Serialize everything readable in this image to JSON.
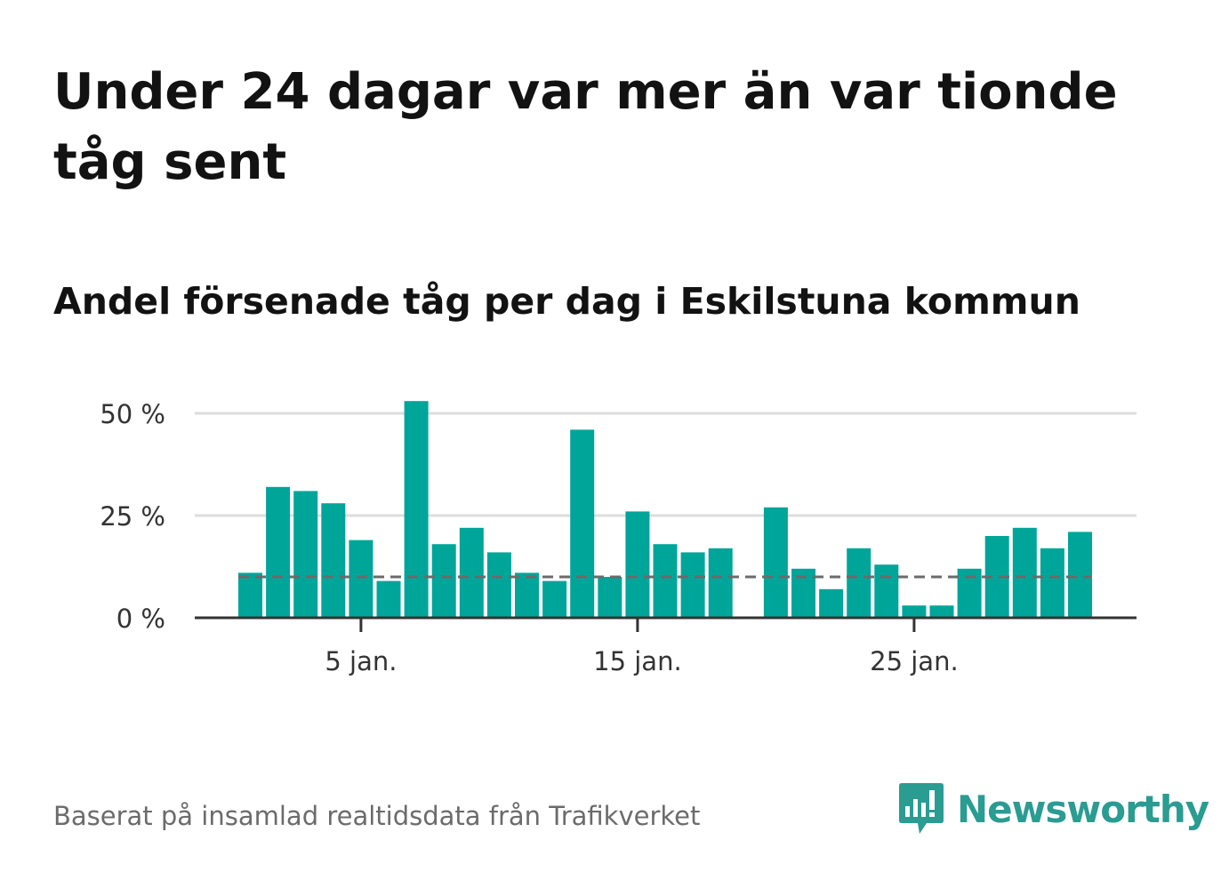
{
  "header": {
    "title": "Under 24 dagar var mer än var tionde tåg sent",
    "subtitle": "Andel försenade tåg per dag i Eskilstuna kommun"
  },
  "footer": {
    "source": "Baserat på insamlad realtidsdata från Trafikverket",
    "brand": "Newsworthy",
    "brand_icon": "newsworthy-logo-icon"
  },
  "colors": {
    "bar": "#00a59a",
    "reference_line": "#6b6b6b",
    "grid": "#dddddd",
    "axis": "#333333",
    "brand": "#2a9c92"
  },
  "chart_data": {
    "type": "bar",
    "x": [
      1,
      2,
      3,
      4,
      5,
      6,
      7,
      8,
      9,
      10,
      11,
      12,
      13,
      14,
      15,
      16,
      17,
      18,
      19,
      20,
      21,
      22,
      23,
      24,
      25,
      26,
      27,
      28,
      29,
      30,
      31
    ],
    "values": [
      11,
      32,
      31,
      28,
      19,
      9,
      53,
      18,
      22,
      16,
      11,
      9,
      46,
      10,
      26,
      18,
      16,
      17,
      null,
      27,
      12,
      7,
      17,
      13,
      3,
      3,
      12,
      20,
      22,
      17,
      21
    ],
    "unit": "%",
    "reference_line": 10,
    "ylim": [
      0,
      55
    ],
    "y_ticks": [
      0,
      25,
      50
    ],
    "y_tick_labels": [
      "0 %",
      "25 %",
      "50 %"
    ],
    "x_ticks": [
      5,
      15,
      25
    ],
    "x_tick_labels": [
      "5 jan.",
      "15 jan.",
      "25 jan."
    ],
    "grid": true
  }
}
